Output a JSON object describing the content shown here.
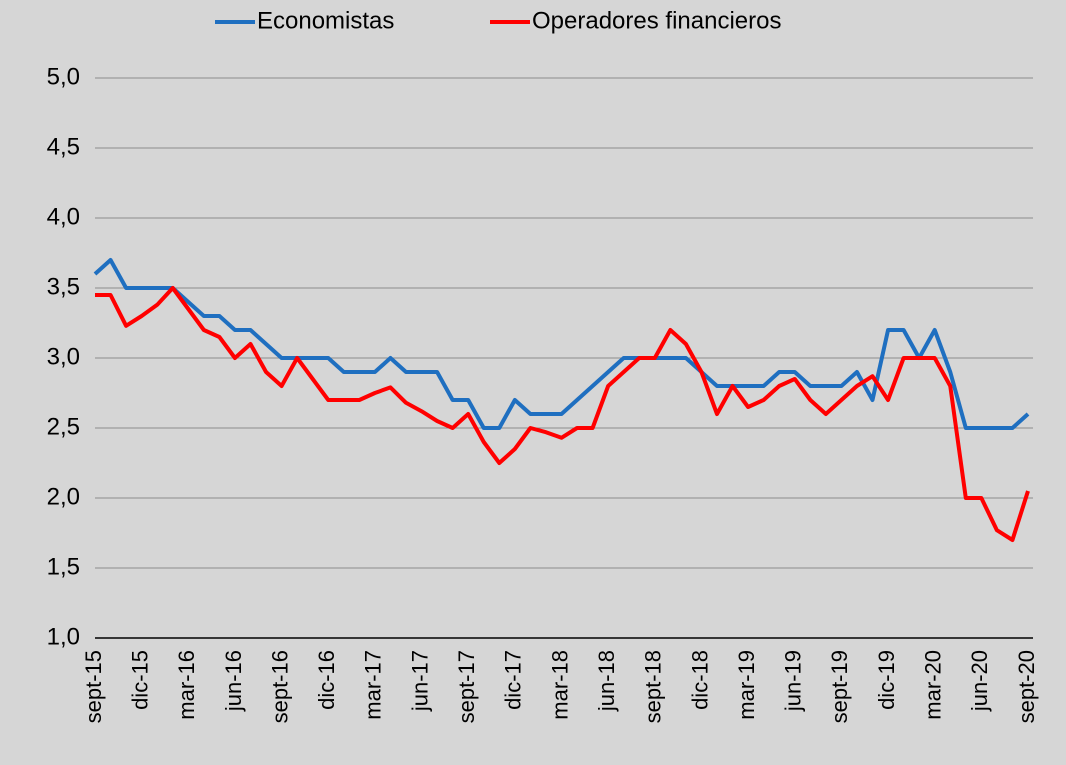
{
  "chart_data": {
    "type": "line",
    "categories": [
      "sept-15",
      null,
      null,
      "dic-15",
      null,
      null,
      "mar-16",
      null,
      null,
      "jun-16",
      null,
      null,
      "sept-16",
      null,
      null,
      "dic-16",
      null,
      null,
      "mar-17",
      null,
      null,
      "jun-17",
      null,
      null,
      "sept-17",
      null,
      null,
      "dic-17",
      null,
      null,
      "mar-18",
      null,
      null,
      "jun-18",
      null,
      null,
      "sept-18",
      null,
      null,
      "dic-18",
      null,
      null,
      "mar-19",
      null,
      null,
      "jun-19",
      null,
      null,
      "sept-19",
      null,
      null,
      "dic-19",
      null,
      null,
      "mar-20",
      null,
      null,
      "jun-20",
      null,
      null,
      "sept-20"
    ],
    "series": [
      {
        "name": "Economistas",
        "color": "#1f6fc0",
        "values": [
          3.6,
          3.7,
          3.5,
          3.5,
          3.5,
          3.5,
          3.4,
          3.3,
          3.3,
          3.2,
          3.2,
          3.1,
          3.0,
          3.0,
          3.0,
          3.0,
          2.9,
          2.9,
          2.9,
          3.0,
          2.9,
          2.9,
          2.9,
          2.7,
          2.7,
          2.5,
          2.5,
          2.7,
          2.6,
          2.6,
          2.6,
          2.7,
          2.8,
          2.9,
          3.0,
          3.0,
          3.0,
          3.0,
          3.0,
          2.9,
          2.8,
          2.8,
          2.8,
          2.8,
          2.9,
          2.9,
          2.8,
          2.8,
          2.8,
          2.9,
          2.7,
          3.2,
          3.2,
          3.0,
          3.2,
          2.9,
          2.5,
          2.5,
          2.5,
          2.5,
          2.6
        ]
      },
      {
        "name": "Operadores financieros",
        "color": "#ff0000",
        "values": [
          3.45,
          3.45,
          3.23,
          3.3,
          3.38,
          3.5,
          3.35,
          3.2,
          3.15,
          3.0,
          3.1,
          2.9,
          2.8,
          3.0,
          2.85,
          2.7,
          2.7,
          2.7,
          2.75,
          2.79,
          2.68,
          2.62,
          2.55,
          2.5,
          2.6,
          2.4,
          2.25,
          2.35,
          2.5,
          2.47,
          2.43,
          2.5,
          2.5,
          2.8,
          2.9,
          3.0,
          3.0,
          3.2,
          3.1,
          2.9,
          2.6,
          2.8,
          2.65,
          2.7,
          2.8,
          2.85,
          2.7,
          2.6,
          2.7,
          2.8,
          2.87,
          2.7,
          3.0,
          3.0,
          3.0,
          2.8,
          2.0,
          2.0,
          1.77,
          1.7,
          2.05
        ]
      }
    ],
    "ylim": [
      1.0,
      5.0
    ],
    "yticks": [
      {
        "value": 1.0,
        "label": "1,0"
      },
      {
        "value": 1.5,
        "label": "1,5"
      },
      {
        "value": 2.0,
        "label": "2,0"
      },
      {
        "value": 2.5,
        "label": "2,5"
      },
      {
        "value": 3.0,
        "label": "3,0"
      },
      {
        "value": 3.5,
        "label": "3,5"
      },
      {
        "value": 4.0,
        "label": "4,0"
      },
      {
        "value": 4.5,
        "label": "4,5"
      },
      {
        "value": 5.0,
        "label": "5,0"
      }
    ],
    "grid": true,
    "legend": "top"
  }
}
